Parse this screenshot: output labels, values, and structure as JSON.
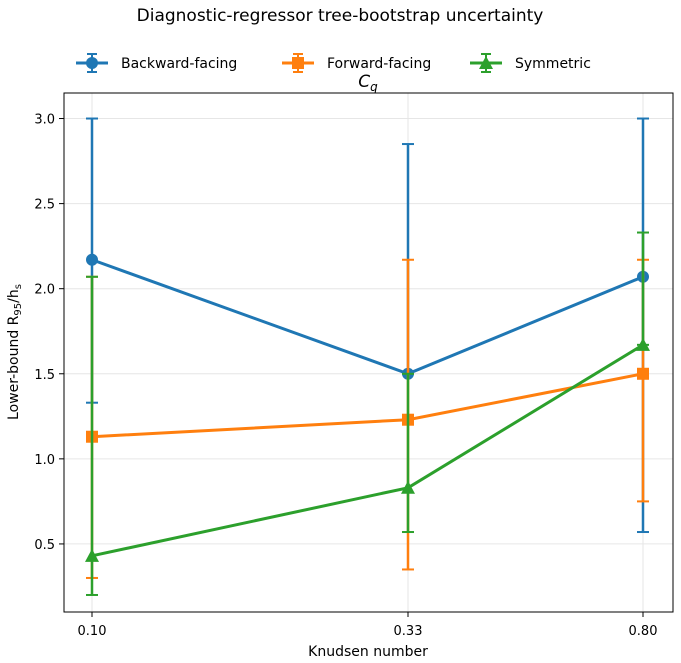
{
  "chart_data": {
    "type": "line",
    "title": "Diagnostic-regressor tree-bootstrap uncertainty",
    "subtitle": "C",
    "subtitle_subscript": "q",
    "xlabel": "Knudsen number",
    "ylabel": "Lower-bound R",
    "ylabel_sub1": "95",
    "ylabel_mid": "/h",
    "ylabel_sub2": "s",
    "categories": [
      "0.10",
      "0.33",
      "0.80"
    ],
    "x": [
      0.1,
      0.33,
      0.8
    ],
    "ylim": [
      0.1,
      3.15
    ],
    "yticks": [
      0.5,
      1.0,
      1.5,
      2.0,
      2.5,
      3.0
    ],
    "ytick_labels": [
      "0.5",
      "1.0",
      "1.5",
      "2.0",
      "2.5",
      "3.0"
    ],
    "grid": true,
    "legend_placement": "top-center",
    "series": [
      {
        "name": "Backward-facing",
        "color": "#1f77b4",
        "marker": "circle",
        "values": [
          2.17,
          1.5,
          2.07
        ],
        "err_low": [
          1.33,
          1.5,
          0.57
        ],
        "err_high": [
          3.0,
          2.85,
          3.0
        ]
      },
      {
        "name": "Forward-facing",
        "color": "#ff7f0e",
        "marker": "square",
        "values": [
          1.13,
          1.23,
          1.5
        ],
        "err_low": [
          0.3,
          0.35,
          0.75
        ],
        "err_high": [
          2.07,
          2.17,
          2.17
        ]
      },
      {
        "name": "Symmetric",
        "color": "#2ca02c",
        "marker": "triangle",
        "values": [
          0.43,
          0.83,
          1.67
        ],
        "err_low": [
          0.2,
          0.57,
          1.67
        ],
        "err_high": [
          2.07,
          1.5,
          2.33
        ]
      }
    ]
  }
}
